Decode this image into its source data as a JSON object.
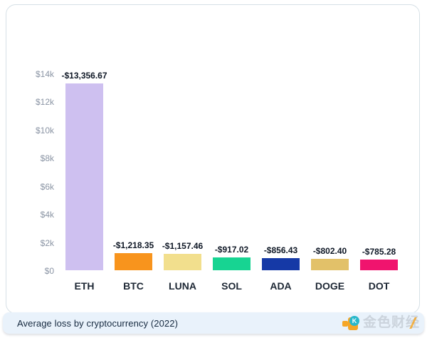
{
  "chart_data": {
    "type": "bar",
    "title": "Average loss by cryptocurrency (2022)",
    "categories": [
      "ETH",
      "BTC",
      "LUNA",
      "SOL",
      "ADA",
      "DOGE",
      "DOT"
    ],
    "values": [
      -13356.67,
      -1218.35,
      -1157.46,
      -917.02,
      -856.43,
      -802.4,
      -785.28
    ],
    "value_labels": [
      "-$13,356.67",
      "-$1,218.35",
      "-$1,157.46",
      "-$917.02",
      "-$856.43",
      "-$802.40",
      "-$785.28"
    ],
    "bar_colors": [
      "#cec0f0",
      "#f8941d",
      "#f2df8d",
      "#17d492",
      "#1539a6",
      "#e2c169",
      "#f0146e"
    ],
    "y_ticks": [
      "$14k",
      "$12k",
      "$10k",
      "$8k",
      "$6k",
      "$4k",
      "$2k",
      "$0"
    ],
    "y_axis_max_abs": 14000,
    "xlabel": "",
    "ylabel": "",
    "grid": false,
    "legend": false,
    "note": "bars show absolute value of average loss; no gridlines; white plot background"
  },
  "footer": {
    "title": "Average loss by cryptocurrency (2022)"
  },
  "watermark": {
    "text": "金色财经",
    "icon": "jinse-coin-k-icon",
    "icon_letter": "K"
  },
  "theme": {
    "page_bg": "#ffffff",
    "card_bg": "#ffffff",
    "card_border": "#d6e0e6",
    "footer_bg": "#e9f2fb",
    "footer_text": "#15293f",
    "tick_text": "#8a94a4",
    "value_text": "#0f1826",
    "category_text": "#1d2734",
    "watermark_orange": "#f6a21c",
    "watermark_teal": "#1fb5c9",
    "watermark_gray": "#aeb6bf"
  }
}
